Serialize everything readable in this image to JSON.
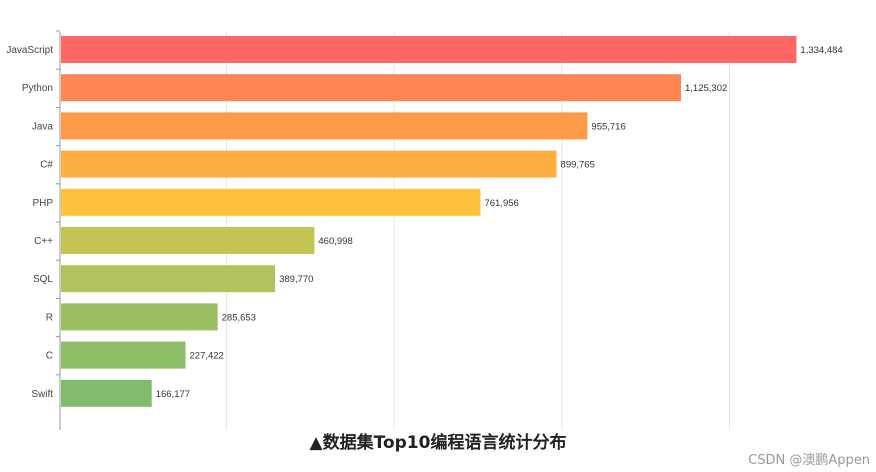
{
  "caption": "▲数据集Top10编程语言统计分布",
  "watermark": "CSDN @澳鹏Appen",
  "chart_data": {
    "type": "bar",
    "orientation": "horizontal",
    "categories": [
      "JavaScript",
      "Python",
      "Java",
      "C#",
      "PHP",
      "C++",
      "SQL",
      "R",
      "C",
      "Swift"
    ],
    "values": [
      1334484,
      1125302,
      955716,
      899765,
      761956,
      460998,
      389770,
      285653,
      227422,
      166177
    ],
    "value_labels": [
      "1,334,484",
      "1,125,302",
      "955,716",
      "899,765",
      "761,956",
      "460,998",
      "389,770",
      "285,653",
      "227,422",
      "166,177"
    ],
    "colors": [
      "#ff6666",
      "#fe8652",
      "#fd9a49",
      "#fdaf42",
      "#fdc13c",
      "#c4c454",
      "#b2c25c",
      "#9bbf60",
      "#8fbe68",
      "#82bb6c"
    ],
    "xlim": [
      0,
      1350000
    ],
    "grid": true
  }
}
